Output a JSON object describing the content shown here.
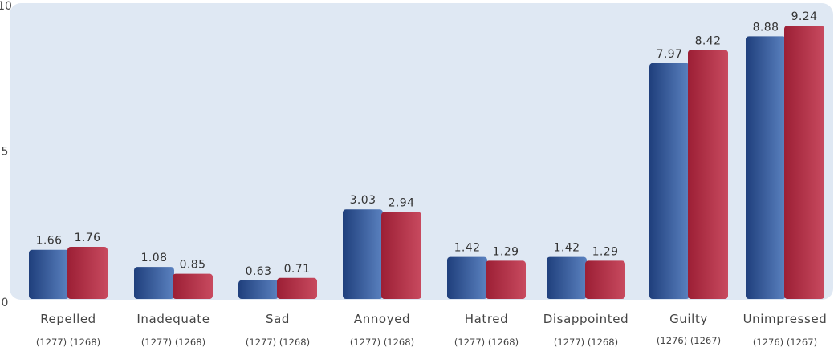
{
  "chart_data": {
    "type": "bar",
    "categories": [
      "Repelled",
      "Inadequate",
      "Sad",
      "Annoyed",
      "Hatred",
      "Disappointed",
      "Guilty",
      "Unimpressed"
    ],
    "sample_sizes": [
      [
        "(1277)",
        "(1268)"
      ],
      [
        "(1277)",
        "(1268)"
      ],
      [
        "(1277)",
        "(1268)"
      ],
      [
        "(1277)",
        "(1268)"
      ],
      [
        "(1277)",
        "(1268)"
      ],
      [
        "(1277)",
        "(1268)"
      ],
      [
        "(1276)",
        "(1267)"
      ],
      [
        "(1276)",
        "(1267)"
      ]
    ],
    "series": [
      {
        "values": [
          1.66,
          1.08,
          0.63,
          3.03,
          1.42,
          1.42,
          7.97,
          8.88
        ],
        "color": "#2a4c8c"
      },
      {
        "values": [
          1.76,
          0.85,
          0.71,
          2.94,
          1.29,
          1.29,
          8.42,
          9.24
        ],
        "color": "#b5304a"
      }
    ],
    "value_labels": [
      [
        "1.66",
        "1.08",
        "0.63",
        "3.03",
        "1.42",
        "1.42",
        "7.97",
        "8.88"
      ],
      [
        "1.76",
        "0.85",
        "0.71",
        "2.94",
        "1.29",
        "1.29",
        "8.42",
        "9.24"
      ]
    ],
    "yticks": [
      "0",
      "5",
      "10"
    ],
    "ylim": [
      0,
      10
    ],
    "title": "",
    "xlabel": "",
    "ylabel": "",
    "grid": true,
    "legend": "none",
    "background_color": "#dfe8f3"
  }
}
